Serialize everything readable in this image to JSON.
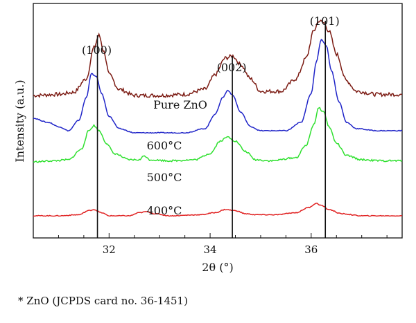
{
  "chart_data": {
    "type": "line",
    "xlabel": "2θ (°)",
    "ylabel": "Intensity (a.u.)",
    "xlim": [
      30.5,
      37.8
    ],
    "x_ticks": [
      32,
      34,
      36
    ],
    "grid": false,
    "peak_labels": [
      {
        "label": "(100)",
        "x": 31.77
      },
      {
        "label": "(002)",
        "x": 34.44
      },
      {
        "label": "(101)",
        "x": 36.28
      }
    ],
    "series": [
      {
        "name": "Pure ZnO",
        "color": "#7b1a12",
        "points": [
          [
            30.5,
            0.64
          ],
          [
            31.0,
            0.645
          ],
          [
            31.3,
            0.655
          ],
          [
            31.55,
            0.72
          ],
          [
            31.7,
            0.87
          ],
          [
            31.8,
            0.93
          ],
          [
            31.9,
            0.85
          ],
          [
            32.0,
            0.74
          ],
          [
            32.2,
            0.67
          ],
          [
            32.5,
            0.64
          ],
          [
            33.0,
            0.64
          ],
          [
            33.5,
            0.645
          ],
          [
            33.9,
            0.67
          ],
          [
            34.1,
            0.74
          ],
          [
            34.3,
            0.82
          ],
          [
            34.45,
            0.83
          ],
          [
            34.6,
            0.79
          ],
          [
            34.8,
            0.72
          ],
          [
            35.0,
            0.66
          ],
          [
            35.4,
            0.66
          ],
          [
            35.7,
            0.72
          ],
          [
            35.9,
            0.82
          ],
          [
            36.05,
            0.95
          ],
          [
            36.15,
            1.0
          ],
          [
            36.25,
            0.99
          ],
          [
            36.35,
            0.95
          ],
          [
            36.5,
            0.84
          ],
          [
            36.7,
            0.71
          ],
          [
            36.9,
            0.66
          ],
          [
            37.3,
            0.645
          ],
          [
            37.8,
            0.645
          ]
        ]
      },
      {
        "name": "600°C",
        "color": "#1f24c8",
        "points": [
          [
            30.5,
            0.53
          ],
          [
            30.8,
            0.51
          ],
          [
            31.0,
            0.49
          ],
          [
            31.2,
            0.47
          ],
          [
            31.4,
            0.52
          ],
          [
            31.55,
            0.63
          ],
          [
            31.65,
            0.745
          ],
          [
            31.75,
            0.73
          ],
          [
            31.85,
            0.65
          ],
          [
            32.0,
            0.54
          ],
          [
            32.2,
            0.48
          ],
          [
            32.5,
            0.46
          ],
          [
            33.0,
            0.46
          ],
          [
            33.5,
            0.46
          ],
          [
            33.9,
            0.48
          ],
          [
            34.1,
            0.55
          ],
          [
            34.25,
            0.63
          ],
          [
            34.35,
            0.665
          ],
          [
            34.45,
            0.64
          ],
          [
            34.6,
            0.56
          ],
          [
            34.8,
            0.49
          ],
          [
            35.0,
            0.47
          ],
          [
            35.5,
            0.47
          ],
          [
            35.8,
            0.51
          ],
          [
            36.0,
            0.65
          ],
          [
            36.1,
            0.8
          ],
          [
            36.2,
            0.91
          ],
          [
            36.3,
            0.88
          ],
          [
            36.4,
            0.76
          ],
          [
            36.55,
            0.61
          ],
          [
            36.7,
            0.51
          ],
          [
            36.9,
            0.48
          ],
          [
            37.3,
            0.47
          ],
          [
            37.8,
            0.47
          ]
        ]
      },
      {
        "name": "500°C",
        "color": "#2fe02f",
        "points": [
          [
            30.5,
            0.32
          ],
          [
            30.9,
            0.325
          ],
          [
            31.2,
            0.33
          ],
          [
            31.45,
            0.38
          ],
          [
            31.6,
            0.47
          ],
          [
            31.7,
            0.495
          ],
          [
            31.8,
            0.47
          ],
          [
            31.95,
            0.41
          ],
          [
            32.1,
            0.36
          ],
          [
            32.4,
            0.33
          ],
          [
            32.6,
            0.33
          ],
          [
            32.7,
            0.35
          ],
          [
            32.8,
            0.33
          ],
          [
            33.2,
            0.325
          ],
          [
            33.7,
            0.33
          ],
          [
            34.0,
            0.36
          ],
          [
            34.2,
            0.42
          ],
          [
            34.35,
            0.44
          ],
          [
            34.5,
            0.42
          ],
          [
            34.7,
            0.37
          ],
          [
            34.9,
            0.33
          ],
          [
            35.2,
            0.325
          ],
          [
            35.7,
            0.34
          ],
          [
            35.9,
            0.4
          ],
          [
            36.05,
            0.5
          ],
          [
            36.15,
            0.58
          ],
          [
            36.25,
            0.56
          ],
          [
            36.35,
            0.49
          ],
          [
            36.5,
            0.41
          ],
          [
            36.7,
            0.35
          ],
          [
            37.0,
            0.33
          ],
          [
            37.4,
            0.325
          ],
          [
            37.8,
            0.325
          ]
        ]
      },
      {
        "name": "400°C",
        "color": "#e02020",
        "points": [
          [
            30.5,
            0.06
          ],
          [
            31.0,
            0.06
          ],
          [
            31.4,
            0.065
          ],
          [
            31.6,
            0.085
          ],
          [
            31.7,
            0.09
          ],
          [
            31.85,
            0.075
          ],
          [
            32.0,
            0.06
          ],
          [
            32.4,
            0.06
          ],
          [
            32.6,
            0.075
          ],
          [
            32.75,
            0.08
          ],
          [
            32.9,
            0.07
          ],
          [
            33.2,
            0.06
          ],
          [
            33.8,
            0.065
          ],
          [
            34.1,
            0.075
          ],
          [
            34.3,
            0.09
          ],
          [
            34.5,
            0.085
          ],
          [
            34.7,
            0.07
          ],
          [
            34.9,
            0.065
          ],
          [
            35.3,
            0.065
          ],
          [
            35.7,
            0.075
          ],
          [
            35.95,
            0.1
          ],
          [
            36.1,
            0.12
          ],
          [
            36.2,
            0.11
          ],
          [
            36.35,
            0.09
          ],
          [
            36.6,
            0.07
          ],
          [
            37.0,
            0.06
          ],
          [
            37.8,
            0.06
          ]
        ]
      }
    ]
  },
  "footnote": "* ZnO (JCPDS card no. 36-1451)"
}
